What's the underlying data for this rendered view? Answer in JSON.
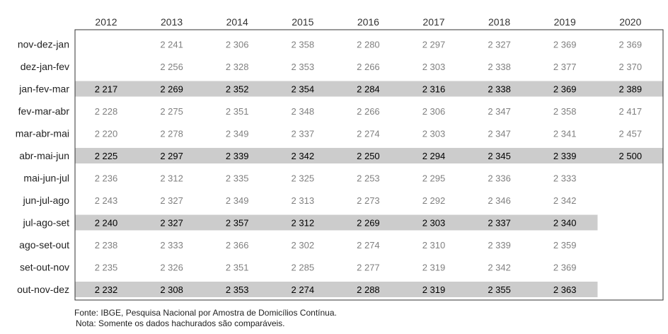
{
  "chart_data": {
    "type": "table",
    "columns": [
      "2012",
      "2013",
      "2014",
      "2015",
      "2016",
      "2017",
      "2018",
      "2019",
      "2020"
    ],
    "rows": [
      "nov-dez-jan",
      "dez-jan-fev",
      "jan-fev-mar",
      "fev-mar-abr",
      "mar-abr-mai",
      "abr-mai-jun",
      "mai-jun-jul",
      "jun-jul-ago",
      "jul-ago-set",
      "ago-set-out",
      "set-out-nov",
      "out-nov-dez"
    ],
    "values": [
      [
        null,
        "2 241",
        "2 306",
        "2 358",
        "2 280",
        "2 297",
        "2 327",
        "2 369",
        "2 369"
      ],
      [
        null,
        "2 256",
        "2 328",
        "2 353",
        "2 266",
        "2 303",
        "2 338",
        "2 377",
        "2 370"
      ],
      [
        "2 217",
        "2 269",
        "2 352",
        "2 354",
        "2 284",
        "2 316",
        "2 338",
        "2 369",
        "2 389"
      ],
      [
        "2 228",
        "2 275",
        "2 351",
        "2 348",
        "2 266",
        "2 306",
        "2 347",
        "2 358",
        "2 417"
      ],
      [
        "2 220",
        "2 278",
        "2 349",
        "2 337",
        "2 274",
        "2 303",
        "2 347",
        "2 341",
        "2 457"
      ],
      [
        "2 225",
        "2 297",
        "2 339",
        "2 342",
        "2 250",
        "2 294",
        "2 345",
        "2 339",
        "2 500"
      ],
      [
        "2 236",
        "2 312",
        "2 335",
        "2 325",
        "2 253",
        "2 295",
        "2 336",
        "2 333",
        null
      ],
      [
        "2 243",
        "2 327",
        "2 349",
        "2 313",
        "2 273",
        "2 292",
        "2 346",
        "2 342",
        null
      ],
      [
        "2 240",
        "2 327",
        "2 357",
        "2 312",
        "2 269",
        "2 303",
        "2 337",
        "2 340",
        null
      ],
      [
        "2 238",
        "2 333",
        "2 366",
        "2 302",
        "2 274",
        "2 310",
        "2 339",
        "2 359",
        null
      ],
      [
        "2 235",
        "2 326",
        "2 351",
        "2 285",
        "2 277",
        "2 319",
        "2 342",
        "2 369",
        null
      ],
      [
        "2 232",
        "2 308",
        "2 353",
        "2 274",
        "2 288",
        "2 319",
        "2 355",
        "2 363",
        null
      ]
    ],
    "highlighted_rows": [
      "jan-fev-mar",
      "abr-mai-jun",
      "jul-ago-set",
      "out-nov-dez"
    ],
    "colors": {
      "highlight_band": "#cccccc",
      "highlight_text": "#000000",
      "normal_text": "#808080",
      "border": "#333333"
    }
  },
  "footer": {
    "source": "Fonte: IBGE, Pesquisa Nacional por Amostra de Domicílios Contínua.",
    "note": "Nota: Somente os dados hachurados são comparáveis."
  }
}
